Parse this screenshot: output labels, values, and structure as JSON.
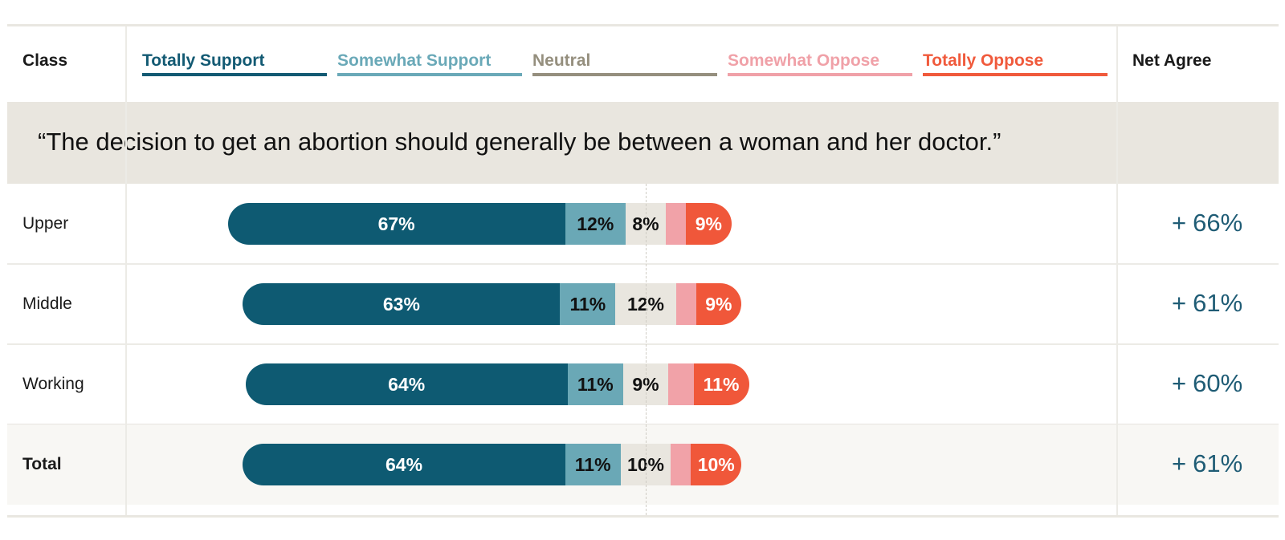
{
  "header": {
    "class_label": "Class",
    "net_label": "Net Agree"
  },
  "legend": [
    {
      "label": "Totally Support",
      "color": "#135a73"
    },
    {
      "label": "Somewhat Support",
      "color": "#6aa9b8"
    },
    {
      "label": "Neutral",
      "color": "#958f7e"
    },
    {
      "label": "Somewhat Oppose",
      "color": "#f0a1a8"
    },
    {
      "label": "Totally Oppose",
      "color": "#f05a3c"
    }
  ],
  "statement": "“The decision to get an abortion should generally be between a woman and her doctor.”",
  "chart_data": {
    "type": "bar",
    "orientation": "horizontal-diverging-stacked",
    "categories": [
      "Upper",
      "Middle",
      "Working",
      "Total"
    ],
    "series": [
      {
        "name": "Totally Support",
        "values": [
          67,
          63,
          64,
          64
        ],
        "labels": [
          "67%",
          "63%",
          "64%",
          "64%"
        ],
        "color": "#0e5a72",
        "text_color": "#ffffff"
      },
      {
        "name": "Somewhat Support",
        "values": [
          12,
          11,
          11,
          11
        ],
        "labels": [
          "12%",
          "11%",
          "11%",
          "11%"
        ],
        "color": "#6aa8b6",
        "text_color": "#111111"
      },
      {
        "name": "Neutral",
        "values": [
          8,
          12,
          9,
          10
        ],
        "labels": [
          "8%",
          "12%",
          "9%",
          "10%"
        ],
        "color": "#e9e6df",
        "text_color": "#111111"
      },
      {
        "name": "Somewhat Oppose",
        "values": [
          4,
          4,
          5,
          4
        ],
        "labels": [
          "",
          "",
          "",
          ""
        ],
        "color": "#f1a2a8",
        "text_color": "#111111"
      },
      {
        "name": "Totally Oppose",
        "values": [
          9,
          9,
          11,
          10
        ],
        "labels": [
          "9%",
          "9%",
          "11%",
          "10%"
        ],
        "color": "#f0573a",
        "text_color": "#ffffff"
      }
    ],
    "net_agree": [
      {
        "prefix": "+",
        "value": "66%"
      },
      {
        "prefix": "+",
        "value": "61%"
      },
      {
        "prefix": "+",
        "value": "60%"
      },
      {
        "prefix": "+",
        "value": "61%"
      }
    ],
    "center_line": "neutral midpoint (dashed)"
  }
}
